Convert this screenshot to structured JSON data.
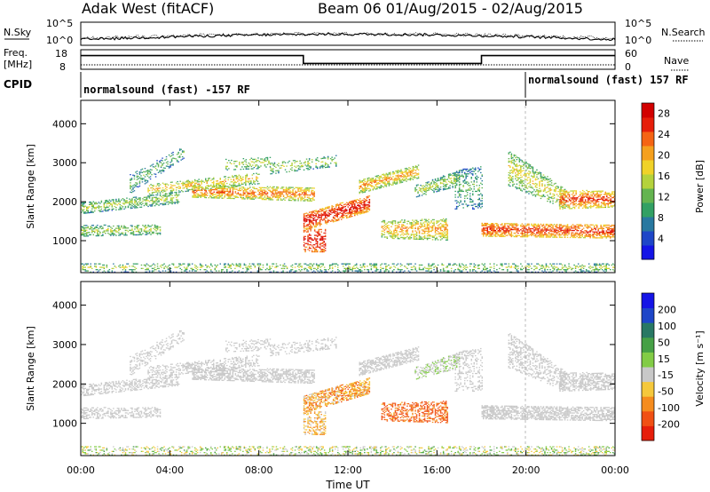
{
  "header": {
    "site": "Adak West (fitACF)",
    "beam_date": "Beam 06 01/Aug/2015 - 02/Aug/2015"
  },
  "strip": {
    "left_nsky": "N.Sky",
    "left_noise_top": "10^5",
    "left_noise_bottom": "10^0",
    "right_noise_top": "10^5",
    "right_noise_bottom": "10^0",
    "right_nsearch": "N.Search",
    "left_freq": "Freq.",
    "left_freq_unit": "[MHz]",
    "freq_top": "18",
    "freq_bottom": "8",
    "nave_top": "60",
    "nave_bottom": "0",
    "right_nave": "Nave",
    "cpid_label": "CPID",
    "cpid_left": "normalsound (fast) -157 RF",
    "cpid_right": "normalsound (fast) 157 RF"
  },
  "colors": {
    "power_scale": [
      "#1414e6",
      "#1e46c8",
      "#2878a0",
      "#32a064",
      "#64b450",
      "#b4d23c",
      "#f0d228",
      "#f5a01e",
      "#f56414",
      "#e61e0a",
      "#d20000"
    ],
    "velocity_scale": [
      "#e61e0a",
      "#f05014",
      "#f58c1e",
      "#f5c83c",
      "#c8c8c8",
      "#82cc46",
      "#46a046",
      "#287864",
      "#1e46c8",
      "#1414e6"
    ]
  },
  "chart_data": [
    {
      "type": "heatmap",
      "panel": "power",
      "ylabel": "Slant Range [km]",
      "yticks": [
        "1000",
        "2000",
        "3000",
        "4000"
      ],
      "ylim": [
        180,
        4600
      ],
      "xticks": [
        "00:00",
        "04:00",
        "08:00",
        "12:00",
        "16:00",
        "20:00",
        "00:00"
      ],
      "xlim": [
        0,
        24
      ],
      "colorbar_label": "Power [dB]",
      "colorbar_ticks": [
        "4",
        "8",
        "12",
        "16",
        "20",
        "24",
        "28"
      ],
      "color_range": [
        0,
        30
      ]
    },
    {
      "type": "heatmap",
      "panel": "velocity",
      "ylabel": "Slant Range [km]",
      "yticks": [
        "1000",
        "2000",
        "3000",
        "4000"
      ],
      "ylim": [
        180,
        4600
      ],
      "xlabel": "Time UT",
      "xticks": [
        "00:00",
        "04:00",
        "08:00",
        "12:00",
        "16:00",
        "20:00",
        "00:00"
      ],
      "xlim": [
        0,
        24
      ],
      "colorbar_label": "Velocity [m s⁻¹]",
      "colorbar_ticks": [
        "200",
        "100",
        "50",
        "15",
        "-15",
        "-50",
        "-100",
        "-200"
      ],
      "color_range": [
        -250,
        250
      ]
    },
    {
      "type": "line",
      "panel": "frequency",
      "x": [
        0,
        10,
        10,
        18,
        18,
        24
      ],
      "y": [
        15,
        15,
        11,
        11,
        15,
        15
      ]
    }
  ]
}
